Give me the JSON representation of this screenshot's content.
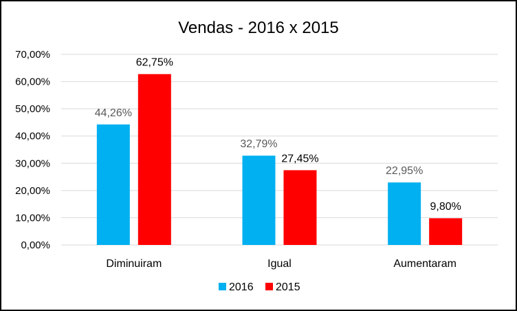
{
  "chart_data": {
    "type": "bar",
    "title": "Vendas - 2016 x 2015",
    "xlabel": "",
    "ylabel": "",
    "categories": [
      "Diminuiram",
      "Igual",
      "Aumentaram"
    ],
    "series": [
      {
        "name": "2016",
        "color": "#00b0f0",
        "label_color": "#595959",
        "values": [
          44.26,
          32.79,
          22.95
        ],
        "labels": [
          "44,26%",
          "32,79%",
          "22,95%"
        ]
      },
      {
        "name": "2015",
        "color": "#ff0000",
        "label_color": "#000000",
        "values": [
          62.75,
          27.45,
          9.8
        ],
        "labels": [
          "62,75%",
          "27,45%",
          "9,80%"
        ]
      }
    ],
    "ylim": [
      0,
      70
    ],
    "yticks": [
      0,
      10,
      20,
      30,
      40,
      50,
      60,
      70
    ],
    "ytick_labels": [
      "0,00%",
      "10,00%",
      "20,00%",
      "30,00%",
      "40,00%",
      "50,00%",
      "60,00%",
      "70,00%"
    ],
    "grid": true,
    "grid_color": "#d9d9d9",
    "legend_position": "bottom",
    "data_labels": true
  }
}
